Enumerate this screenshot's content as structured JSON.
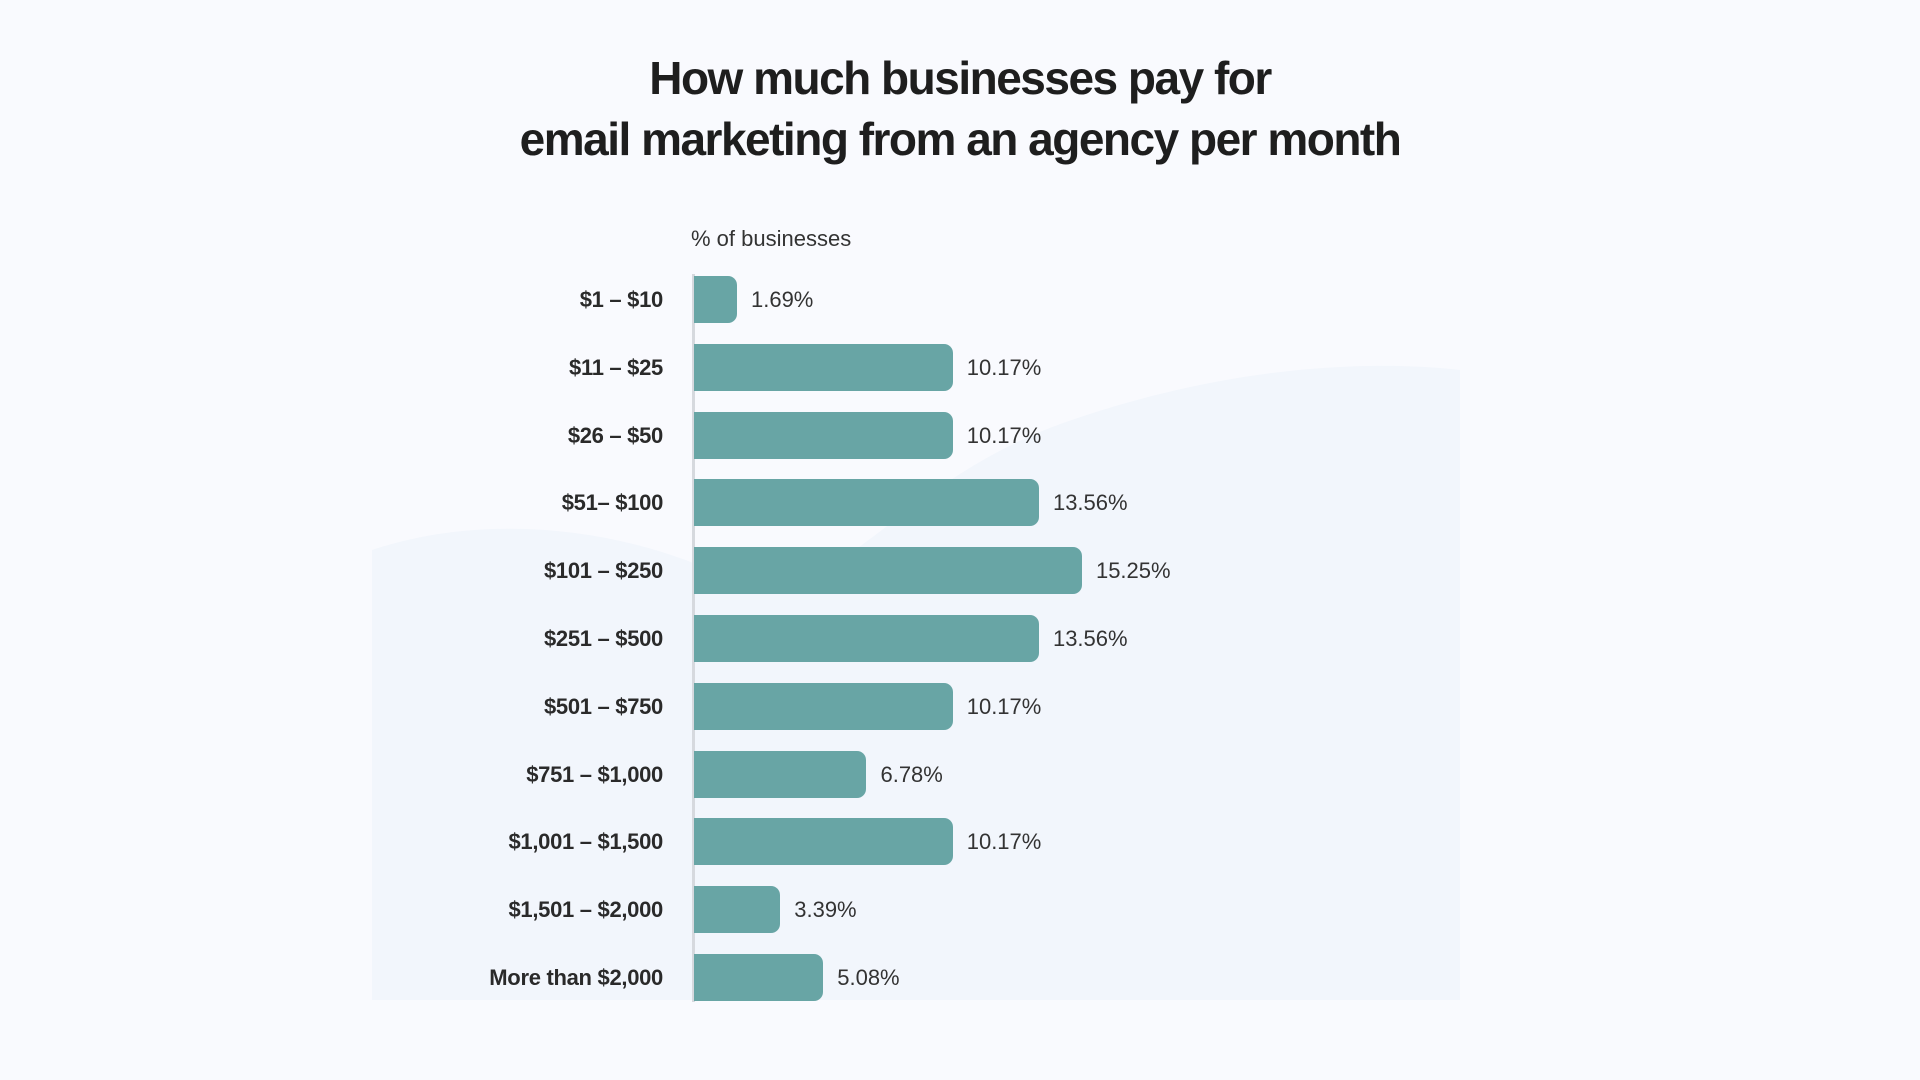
{
  "title_line1": "How much businesses pay for",
  "title_line2": "email marketing from an agency per month",
  "axis_label": "% of businesses",
  "colors": {
    "bar": "#68a5a5",
    "background": "#f9fafe",
    "axis": "#d6d9de"
  },
  "rows": [
    {
      "label": "$1 – $10",
      "value": 1.69,
      "display": "1.69%"
    },
    {
      "label": "$11 – $25",
      "value": 10.17,
      "display": "10.17%"
    },
    {
      "label": "$26 – $50",
      "value": 10.17,
      "display": "10.17%"
    },
    {
      "label": "$51– $100",
      "value": 13.56,
      "display": "13.56%"
    },
    {
      "label": "$101 – $250",
      "value": 15.25,
      "display": "15.25%"
    },
    {
      "label": "$251 – $500",
      "value": 13.56,
      "display": "13.56%"
    },
    {
      "label": "$501 – $750",
      "value": 10.17,
      "display": "10.17%"
    },
    {
      "label": "$751 – $1,000",
      "value": 6.78,
      "display": "6.78%"
    },
    {
      "label": "$1,001 – $1,500",
      "value": 10.17,
      "display": "10.17%"
    },
    {
      "label": "$1,501 – $2,000",
      "value": 3.39,
      "display": "3.39%"
    },
    {
      "label": "More than $2,000",
      "value": 5.08,
      "display": "5.08%"
    }
  ],
  "chart_data": {
    "type": "bar",
    "orientation": "horizontal",
    "title": "How much businesses pay for email marketing from an agency per month",
    "xlabel": "% of businesses",
    "ylabel": "",
    "categories": [
      "$1 – $10",
      "$11 – $25",
      "$26 – $50",
      "$51– $100",
      "$101 – $250",
      "$251 – $500",
      "$501 – $750",
      "$751 – $1,000",
      "$1,001 – $1,500",
      "$1,501 – $2,000",
      "More than $2,000"
    ],
    "values": [
      1.69,
      10.17,
      10.17,
      13.56,
      15.25,
      13.56,
      10.17,
      6.78,
      10.17,
      3.39,
      5.08
    ],
    "data_labels": [
      "1.69%",
      "10.17%",
      "10.17%",
      "13.56%",
      "15.25%",
      "13.56%",
      "10.17%",
      "6.78%",
      "10.17%",
      "3.39%",
      "5.08%"
    ],
    "grid": false,
    "legend": null
  }
}
